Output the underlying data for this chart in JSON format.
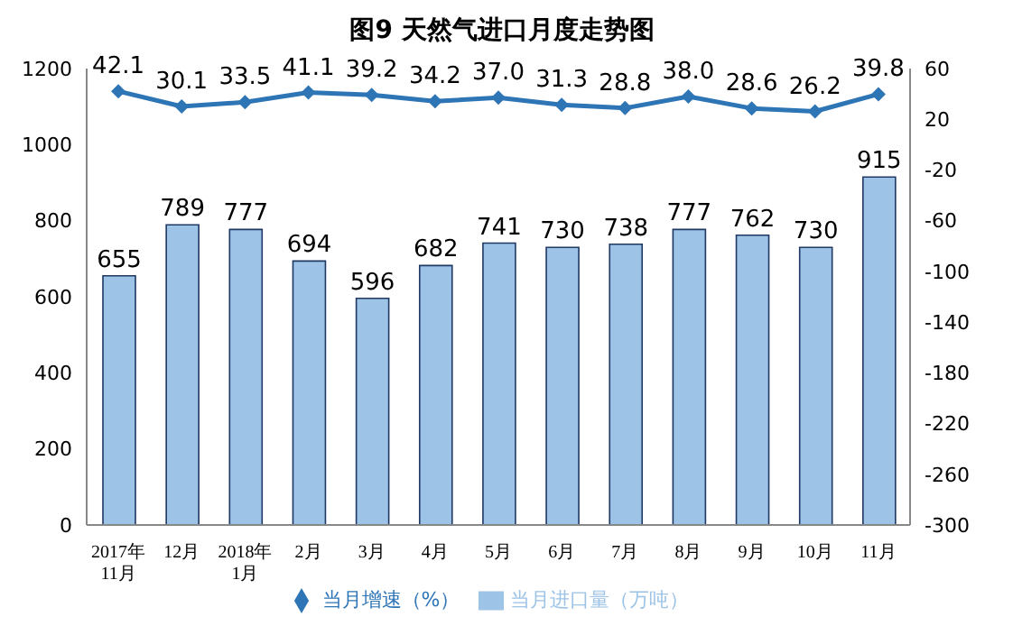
{
  "chart_data": {
    "type": "bar",
    "title": "图9  天然气进口月度走势图",
    "categories": [
      "2017年\n11月",
      "12月",
      "2018年\n1月",
      "2月",
      "3月",
      "4月",
      "5月",
      "6月",
      "7月",
      "8月",
      "9月",
      "10月",
      "11月"
    ],
    "series": [
      {
        "name": "当月进口量（万吨）",
        "color": "#9dc3e6",
        "values": [
          655,
          789,
          777,
          694,
          596,
          682,
          741,
          730,
          738,
          777,
          762,
          730,
          915
        ]
      },
      {
        "name": "当月增速（%）",
        "type": "line",
        "axis": "y2",
        "color": "#2e75b6",
        "values": [
          42.1,
          30.1,
          33.5,
          41.1,
          39.2,
          34.2,
          37.0,
          31.3,
          28.8,
          38.0,
          28.6,
          26.2,
          39.8
        ],
        "value_labels": [
          "42.1",
          "30.1",
          "33.5",
          "41.1",
          "39.2",
          "34.2",
          "37.0",
          "31.3",
          "28.8",
          "38.0",
          "28.6",
          "26.2",
          "39.8"
        ]
      }
    ],
    "ylim": [
      0,
      1200
    ],
    "yticks": [
      0,
      200,
      400,
      600,
      800,
      1000,
      1200
    ],
    "y2lim": [
      -300,
      60
    ],
    "y2ticks": [
      60,
      20,
      -20,
      -60,
      -100,
      -140,
      -180,
      -220,
      -260,
      -300
    ],
    "data_labels": true,
    "legend": "bottom",
    "marker": "diamond",
    "grid": false
  }
}
